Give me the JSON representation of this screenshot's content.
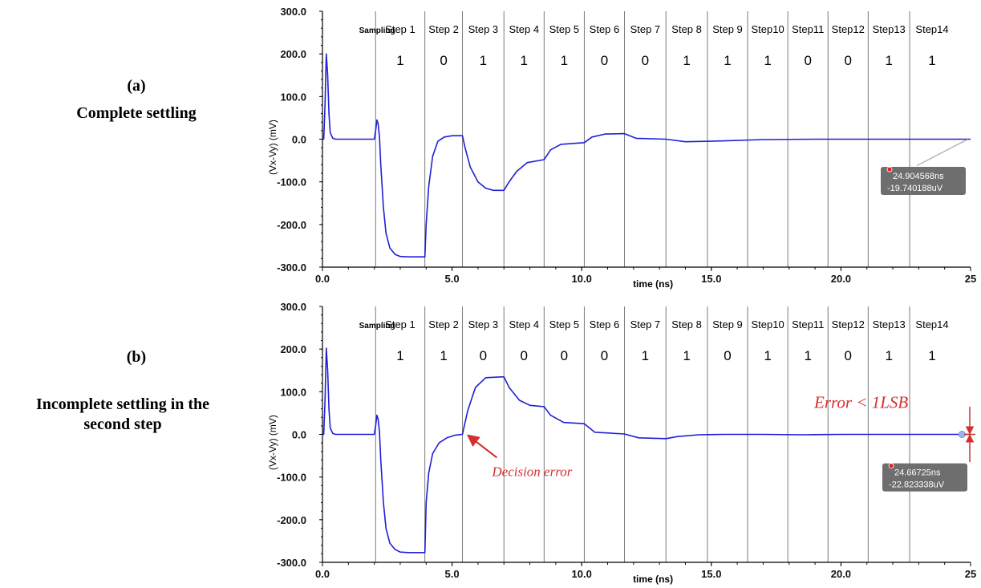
{
  "panels": [
    {
      "label": "(a)",
      "caption": "Complete settling"
    },
    {
      "label": "(b)",
      "caption_lines": [
        "Incomplete settling in the",
        "second step"
      ]
    }
  ],
  "chart_data": [
    {
      "type": "line",
      "ylabel": "(Vx-Vy) (mV)",
      "xlabel": "time (ns)",
      "xlim": [
        0,
        25
      ],
      "ylim": [
        -300,
        300
      ],
      "x_ticks": [
        "0.0",
        "5.0",
        "10.0",
        "15.0",
        "20.0",
        "25"
      ],
      "y_ticks": [
        "300.0",
        "200.0",
        "100.0",
        "0.0",
        "-100.0",
        "-200.0",
        "-300.0"
      ],
      "step_boundaries": [
        2.05,
        3.95,
        5.4,
        7.0,
        8.55,
        10.1,
        11.65,
        13.25,
        14.85,
        16.4,
        17.95,
        19.5,
        21.05,
        22.65
      ],
      "step_labels": [
        "Sampling",
        "Step 1",
        "Step 2",
        "Step 3",
        "Step 4",
        "Step 5",
        "Step 6",
        "Step 7",
        "Step 8",
        "Step 9",
        "Step10",
        "Step11",
        "Step12",
        "Step13",
        "Step14"
      ],
      "bits": [
        "1",
        "0",
        "1",
        "1",
        "1",
        "0",
        "0",
        "1",
        "1",
        "1",
        "0",
        "0",
        "1",
        "1"
      ],
      "series": [
        {
          "color": "#1f1fd6",
          "x": [
            0,
            0.05,
            0.1,
            0.15,
            0.2,
            0.25,
            0.3,
            0.4,
            0.5,
            0.7,
            1.0,
            2.0,
            2.05,
            2.1,
            2.15,
            2.2,
            2.25,
            2.35,
            2.45,
            2.6,
            2.8,
            3.0,
            3.3,
            3.6,
            3.95,
            4.0,
            4.1,
            4.25,
            4.45,
            4.7,
            5.0,
            5.4,
            5.5,
            5.7,
            6.0,
            6.3,
            6.6,
            7.0,
            7.2,
            7.5,
            7.9,
            8.55,
            8.8,
            9.2,
            10.1,
            10.4,
            10.9,
            11.65,
            12.1,
            13.25,
            14.0,
            15.5,
            17.0,
            19.0,
            21.0,
            23.0,
            25.0
          ],
          "values": [
            0,
            0,
            80,
            200,
            150,
            60,
            15,
            2,
            0,
            0,
            0,
            0,
            20,
            45,
            35,
            5,
            -60,
            -160,
            -220,
            -255,
            -270,
            -275,
            -276,
            -276,
            -276,
            -200,
            -110,
            -40,
            -5,
            5,
            8,
            8,
            -20,
            -65,
            -100,
            -115,
            -120,
            -120,
            -100,
            -75,
            -55,
            -48,
            -25,
            -12,
            -8,
            5,
            12,
            13,
            2,
            0,
            -6,
            -4,
            -1,
            0,
            0,
            0,
            0
          ]
        }
      ],
      "marker": {
        "line1": "24.904568ns",
        "line2": "-19.740188uV"
      }
    },
    {
      "type": "line",
      "ylabel": "(Vx-Vy) (mV)",
      "xlabel": "time (ns)",
      "xlim": [
        0,
        25
      ],
      "ylim": [
        -300,
        300
      ],
      "x_ticks": [
        "0.0",
        "5.0",
        "10.0",
        "15.0",
        "20.0",
        "25"
      ],
      "y_ticks": [
        "300.0",
        "200.0",
        "100.0",
        "0.0",
        "-100.0",
        "-200.0",
        "-300.0"
      ],
      "step_boundaries": [
        2.05,
        3.95,
        5.4,
        7.0,
        8.55,
        10.1,
        11.65,
        13.25,
        14.85,
        16.4,
        17.95,
        19.5,
        21.05,
        22.65
      ],
      "step_labels": [
        "Sampling",
        "Step 1",
        "Step 2",
        "Step 3",
        "Step 4",
        "Step 5",
        "Step 6",
        "Step 7",
        "Step 8",
        "Step 9",
        "Step10",
        "Step11",
        "Step12",
        "Step13",
        "Step14"
      ],
      "bits": [
        "1",
        "1",
        "0",
        "0",
        "0",
        "0",
        "1",
        "1",
        "0",
        "1",
        "1",
        "0",
        "1",
        "1"
      ],
      "series": [
        {
          "color": "#1f1fd6",
          "x": [
            0,
            0.05,
            0.1,
            0.15,
            0.2,
            0.25,
            0.3,
            0.4,
            0.5,
            0.7,
            1.0,
            2.0,
            2.05,
            2.1,
            2.15,
            2.2,
            2.25,
            2.35,
            2.45,
            2.6,
            2.8,
            3.0,
            3.3,
            3.6,
            3.95,
            4.0,
            4.1,
            4.25,
            4.5,
            4.8,
            5.1,
            5.4,
            5.6,
            5.9,
            6.3,
            7.0,
            7.2,
            7.6,
            8.0,
            8.55,
            8.8,
            9.3,
            10.1,
            10.5,
            11.65,
            12.2,
            13.25,
            13.7,
            14.5,
            15.5,
            17.0,
            18.5,
            20.0,
            22.0,
            25.0
          ],
          "values": [
            0,
            0,
            80,
            202,
            150,
            60,
            15,
            2,
            0,
            0,
            0,
            0,
            20,
            45,
            35,
            5,
            -60,
            -160,
            -220,
            -255,
            -270,
            -276,
            -277,
            -277,
            -277,
            -160,
            -90,
            -45,
            -20,
            -8,
            -2,
            0,
            55,
            110,
            133,
            135,
            110,
            80,
            68,
            65,
            45,
            28,
            25,
            5,
            1,
            -8,
            -10,
            -5,
            -1,
            0,
            0,
            -1,
            0,
            0,
            0
          ]
        }
      ],
      "marker": {
        "line1": "24.66725ns",
        "line2": "-22.823338uV"
      },
      "annotations": {
        "decision_error": "Decision error",
        "error_lsb": "Error < 1LSB"
      }
    }
  ]
}
